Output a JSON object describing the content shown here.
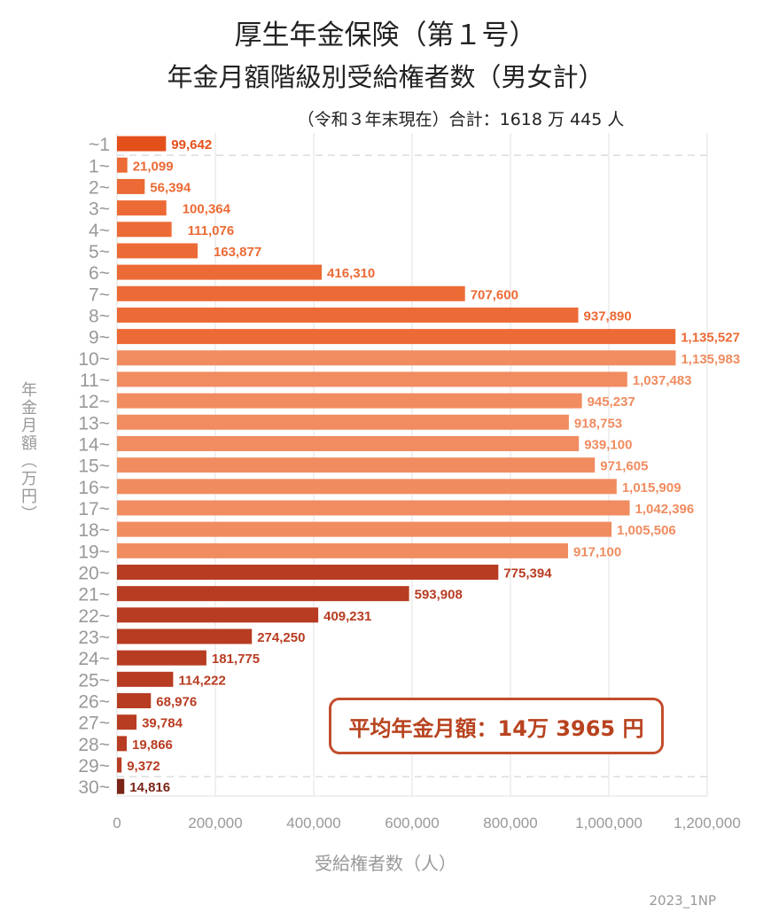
{
  "chart_data": {
    "type": "bar",
    "orientation": "horizontal",
    "title": "厚生年金保険（第１号）",
    "subtitle": "年金月額階級別受給権者数（男女計）",
    "note": "（令和３年末現在）合計：1618 万 445 人",
    "xlabel": "受給権者数（人）",
    "ylabel": "年金月額（万円）",
    "xlim": [
      0,
      1200000
    ],
    "xticks": [
      "0",
      "200,000",
      "400,000",
      "600,000",
      "800,000",
      "1,000,000",
      "1,200,000"
    ],
    "grid": "vertical",
    "categories": [
      "~1",
      "1~",
      "2~",
      "3~",
      "4~",
      "5~",
      "6~",
      "7~",
      "8~",
      "9~",
      "10~",
      "11~",
      "12~",
      "13~",
      "14~",
      "15~",
      "16~",
      "17~",
      "18~",
      "19~",
      "20~",
      "21~",
      "22~",
      "23~",
      "24~",
      "25~",
      "26~",
      "27~",
      "28~",
      "29~",
      "30~"
    ],
    "values": [
      99642,
      21099,
      56394,
      100364,
      111076,
      163877,
      416310,
      707600,
      937890,
      1135527,
      1135983,
      1037483,
      945237,
      918753,
      939100,
      971605,
      1015909,
      1042396,
      1005506,
      917100,
      775394,
      593908,
      409231,
      274250,
      181775,
      114222,
      68976,
      39784,
      19866,
      9372,
      14816
    ],
    "labels": [
      "99,642",
      "21,099",
      "56,394",
      "100,364",
      "111,076",
      "163,877",
      "416,310",
      "707,600",
      "937,890",
      "1,135,527",
      "1,135,983",
      "1,037,483",
      "945,237",
      "918,753",
      "939,100",
      "971,605",
      "1,015,909",
      "1,042,396",
      "1,005,506",
      "917,100",
      "775,394",
      "593,908",
      "409,231",
      "274,250",
      "181,775",
      "114,222",
      "68,976",
      "39,784",
      "19,866",
      "9,372",
      "14,816"
    ],
    "colors": {
      "under1": "#e4501a",
      "1to9": "#ec6a35",
      "10to19": "#f08c60",
      "20to29": "#b83c22",
      "30plus": "#7a2517"
    },
    "annotation": "平均年金月額：14万 3965 円"
  },
  "credit": "2023_1NP"
}
